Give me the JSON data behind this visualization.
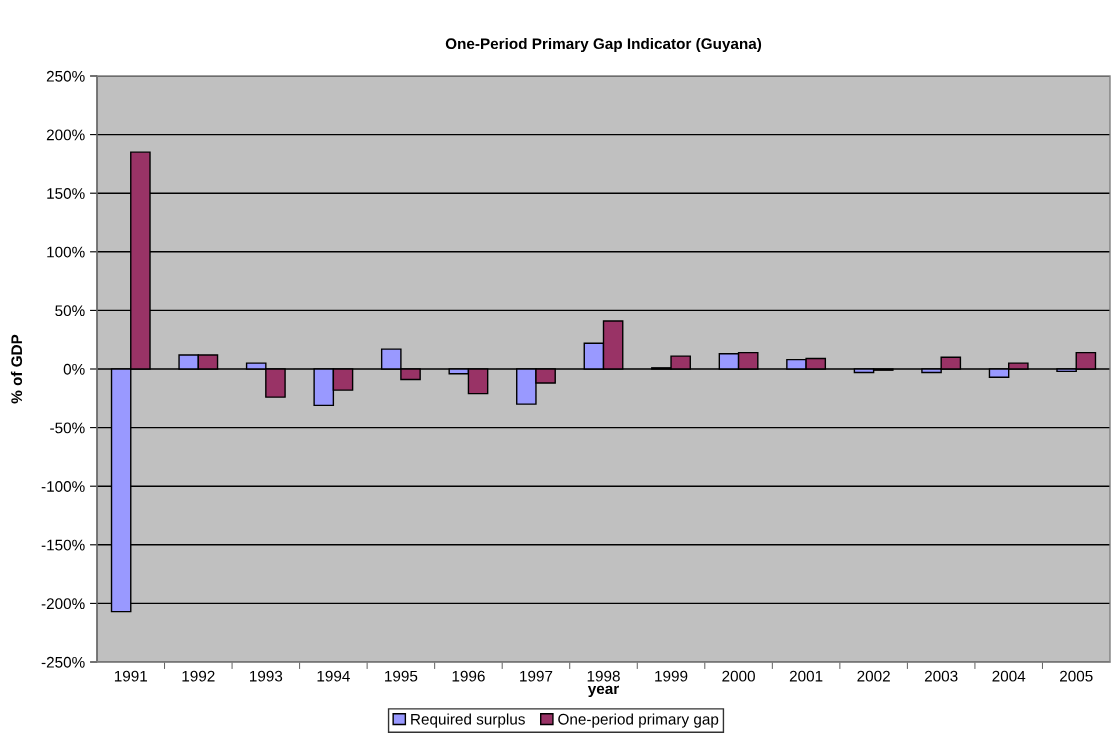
{
  "chart_data": {
    "type": "bar",
    "title": "One-Period Primary Gap Indicator (Guyana)",
    "xlabel": "year",
    "ylabel": "% of GDP",
    "categories": [
      "1991",
      "1992",
      "1993",
      "1994",
      "1995",
      "1996",
      "1997",
      "1998",
      "1999",
      "2000",
      "2001",
      "2002",
      "2003",
      "2004",
      "2005"
    ],
    "series": [
      {
        "name": "Required surplus",
        "color": "#9999ff",
        "values": [
          -207,
          12,
          5,
          -31,
          17,
          -4,
          -30,
          22,
          1,
          13,
          8,
          -3,
          -3,
          -7,
          -2
        ]
      },
      {
        "name": "One-period primary gap",
        "color": "#993366",
        "values": [
          185,
          12,
          -24,
          -18,
          -9,
          -21,
          -12,
          41,
          11,
          14,
          9,
          -1,
          10,
          5,
          14
        ]
      }
    ],
    "ylim": [
      -250,
      250
    ],
    "yticks": [
      {
        "value": -250,
        "label": "-250%"
      },
      {
        "value": -200,
        "label": "-200%"
      },
      {
        "value": -150,
        "label": "-150%"
      },
      {
        "value": -100,
        "label": "-100%"
      },
      {
        "value": -50,
        "label": "-50%"
      },
      {
        "value": 0,
        "label": "0%"
      },
      {
        "value": 50,
        "label": "50%"
      },
      {
        "value": 100,
        "label": "100%"
      },
      {
        "value": 150,
        "label": "150%"
      },
      {
        "value": 200,
        "label": "200%"
      },
      {
        "value": 250,
        "label": "250%"
      }
    ],
    "grid": "y",
    "legend": "bottom"
  }
}
